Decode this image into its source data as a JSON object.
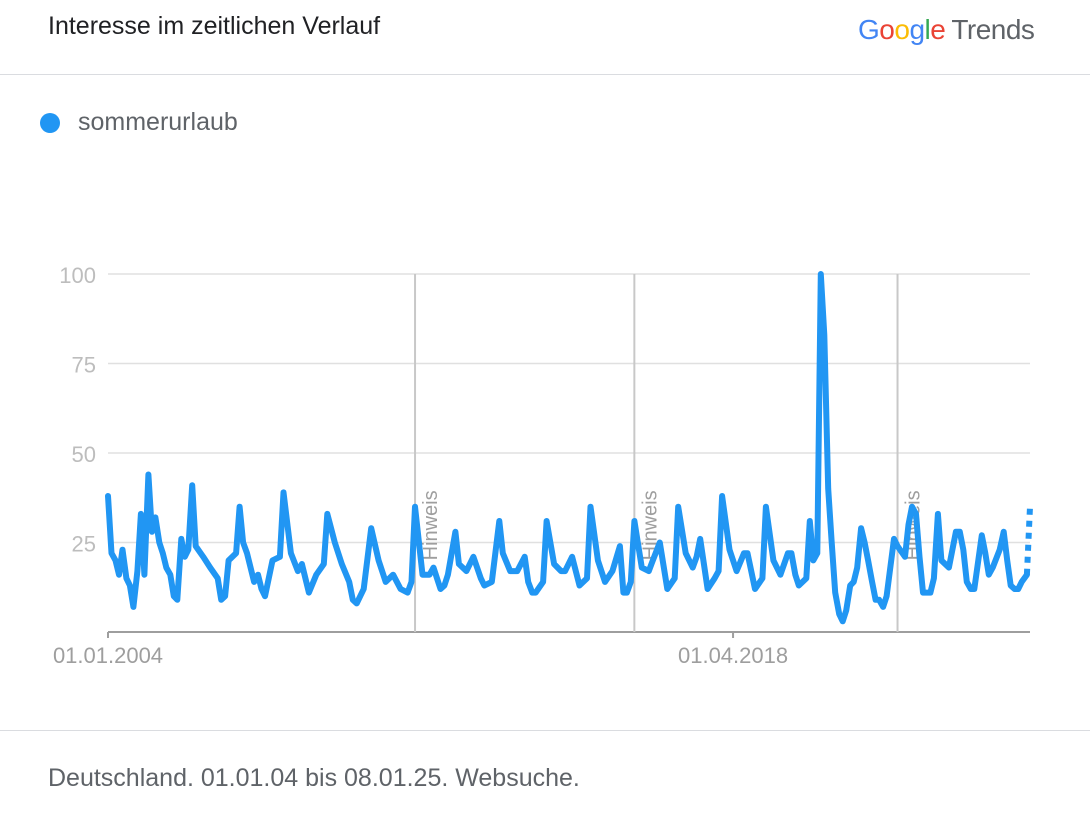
{
  "header": {
    "title": "Interesse im zeitlichen Verlauf",
    "logo_google": [
      "G",
      "o",
      "o",
      "g",
      "l",
      "e"
    ],
    "logo_trends": "Trends"
  },
  "legend": {
    "label": "sommerurlaub",
    "color": "#2196F3"
  },
  "footer": {
    "text": "Deutschland. 01.01.04 bis 08.01.25. Websuche."
  },
  "chart_data": {
    "type": "line",
    "ylim": [
      0,
      100
    ],
    "yticks": [
      "100",
      "75",
      "50",
      "25"
    ],
    "xtick_labels": [
      {
        "label": "01.01.2004",
        "x": 2004.0
      },
      {
        "label": "01.04.2018",
        "x": 2018.25
      }
    ],
    "annotations": [
      {
        "label": "Hinweis",
        "x": 2011.0
      },
      {
        "label": "Hinweis",
        "x": 2016.0
      },
      {
        "label": "Hinweis",
        "x": 2022.0
      }
    ],
    "series": [
      {
        "name": "sommerurlaub",
        "color": "#2196F3",
        "partial_from_x": 2024.95,
        "points": [
          [
            2004.0,
            38
          ],
          [
            2004.08,
            22
          ],
          [
            2004.17,
            20
          ],
          [
            2004.25,
            16
          ],
          [
            2004.33,
            23
          ],
          [
            2004.42,
            15
          ],
          [
            2004.5,
            13
          ],
          [
            2004.58,
            7
          ],
          [
            2004.67,
            17
          ],
          [
            2004.75,
            33
          ],
          [
            2004.83,
            16
          ],
          [
            2004.92,
            44
          ],
          [
            2005.0,
            28
          ],
          [
            2005.08,
            32
          ],
          [
            2005.17,
            25
          ],
          [
            2005.25,
            22
          ],
          [
            2005.33,
            18
          ],
          [
            2005.42,
            16
          ],
          [
            2005.5,
            10
          ],
          [
            2005.58,
            9
          ],
          [
            2005.67,
            26
          ],
          [
            2005.75,
            21
          ],
          [
            2005.83,
            23
          ],
          [
            2005.92,
            41
          ],
          [
            2006.0,
            24
          ],
          [
            2006.17,
            21
          ],
          [
            2006.33,
            18
          ],
          [
            2006.5,
            15
          ],
          [
            2006.58,
            9
          ],
          [
            2006.67,
            10
          ],
          [
            2006.75,
            20
          ],
          [
            2006.92,
            22
          ],
          [
            2007.0,
            35
          ],
          [
            2007.08,
            25
          ],
          [
            2007.17,
            22
          ],
          [
            2007.33,
            14
          ],
          [
            2007.42,
            16
          ],
          [
            2007.5,
            12
          ],
          [
            2007.58,
            10
          ],
          [
            2007.75,
            20
          ],
          [
            2007.92,
            21
          ],
          [
            2008.0,
            39
          ],
          [
            2008.17,
            22
          ],
          [
            2008.33,
            17
          ],
          [
            2008.42,
            19
          ],
          [
            2008.58,
            11
          ],
          [
            2008.75,
            16
          ],
          [
            2008.92,
            19
          ],
          [
            2009.0,
            33
          ],
          [
            2009.17,
            25
          ],
          [
            2009.33,
            19
          ],
          [
            2009.5,
            14
          ],
          [
            2009.58,
            9
          ],
          [
            2009.67,
            8
          ],
          [
            2009.83,
            12
          ],
          [
            2010.0,
            29
          ],
          [
            2010.17,
            20
          ],
          [
            2010.33,
            14
          ],
          [
            2010.5,
            16
          ],
          [
            2010.67,
            12
          ],
          [
            2010.83,
            11
          ],
          [
            2010.92,
            14
          ],
          [
            2011.0,
            35
          ],
          [
            2011.17,
            16
          ],
          [
            2011.33,
            16
          ],
          [
            2011.42,
            18
          ],
          [
            2011.5,
            15
          ],
          [
            2011.58,
            12
          ],
          [
            2011.67,
            13
          ],
          [
            2011.75,
            16
          ],
          [
            2011.92,
            28
          ],
          [
            2012.0,
            19
          ],
          [
            2012.17,
            17
          ],
          [
            2012.33,
            21
          ],
          [
            2012.5,
            15
          ],
          [
            2012.58,
            13
          ],
          [
            2012.75,
            14
          ],
          [
            2012.92,
            31
          ],
          [
            2013.0,
            22
          ],
          [
            2013.17,
            17
          ],
          [
            2013.33,
            17
          ],
          [
            2013.5,
            21
          ],
          [
            2013.58,
            14
          ],
          [
            2013.67,
            11
          ],
          [
            2013.75,
            11
          ],
          [
            2013.92,
            14
          ],
          [
            2014.0,
            31
          ],
          [
            2014.17,
            19
          ],
          [
            2014.33,
            17
          ],
          [
            2014.42,
            17
          ],
          [
            2014.58,
            21
          ],
          [
            2014.75,
            13
          ],
          [
            2014.92,
            15
          ],
          [
            2015.0,
            35
          ],
          [
            2015.17,
            20
          ],
          [
            2015.33,
            14
          ],
          [
            2015.5,
            17
          ],
          [
            2015.67,
            24
          ],
          [
            2015.75,
            11
          ],
          [
            2015.83,
            11
          ],
          [
            2015.92,
            14
          ],
          [
            2016.0,
            31
          ],
          [
            2016.17,
            18
          ],
          [
            2016.33,
            17
          ],
          [
            2016.42,
            20
          ],
          [
            2016.58,
            25
          ],
          [
            2016.75,
            12
          ],
          [
            2016.92,
            15
          ],
          [
            2017.0,
            35
          ],
          [
            2017.17,
            22
          ],
          [
            2017.33,
            18
          ],
          [
            2017.42,
            21
          ],
          [
            2017.5,
            26
          ],
          [
            2017.67,
            12
          ],
          [
            2017.83,
            15
          ],
          [
            2017.92,
            17
          ],
          [
            2018.0,
            38
          ],
          [
            2018.17,
            23
          ],
          [
            2018.33,
            17
          ],
          [
            2018.5,
            22
          ],
          [
            2018.58,
            22
          ],
          [
            2018.75,
            12
          ],
          [
            2018.92,
            15
          ],
          [
            2019.0,
            35
          ],
          [
            2019.17,
            20
          ],
          [
            2019.33,
            16
          ],
          [
            2019.5,
            22
          ],
          [
            2019.58,
            22
          ],
          [
            2019.67,
            16
          ],
          [
            2019.75,
            13
          ],
          [
            2019.92,
            15
          ],
          [
            2020.0,
            31
          ],
          [
            2020.08,
            20
          ],
          [
            2020.17,
            22
          ],
          [
            2020.25,
            100
          ],
          [
            2020.33,
            83
          ],
          [
            2020.42,
            40
          ],
          [
            2020.5,
            25
          ],
          [
            2020.58,
            11
          ],
          [
            2020.67,
            5
          ],
          [
            2020.75,
            3
          ],
          [
            2020.83,
            6
          ],
          [
            2020.92,
            13
          ],
          [
            2021.0,
            14
          ],
          [
            2021.08,
            18
          ],
          [
            2021.17,
            29
          ],
          [
            2021.25,
            25
          ],
          [
            2021.33,
            20
          ],
          [
            2021.42,
            14
          ],
          [
            2021.5,
            9
          ],
          [
            2021.58,
            9
          ],
          [
            2021.67,
            7
          ],
          [
            2021.75,
            10
          ],
          [
            2021.92,
            26
          ],
          [
            2022.0,
            24
          ],
          [
            2022.17,
            21
          ],
          [
            2022.25,
            30
          ],
          [
            2022.33,
            35
          ],
          [
            2022.42,
            33
          ],
          [
            2022.5,
            21
          ],
          [
            2022.58,
            11
          ],
          [
            2022.75,
            11
          ],
          [
            2022.83,
            15
          ],
          [
            2022.92,
            33
          ],
          [
            2023.0,
            20
          ],
          [
            2023.17,
            18
          ],
          [
            2023.33,
            28
          ],
          [
            2023.42,
            28
          ],
          [
            2023.5,
            23
          ],
          [
            2023.58,
            14
          ],
          [
            2023.67,
            12
          ],
          [
            2023.75,
            12
          ],
          [
            2023.92,
            27
          ],
          [
            2024.0,
            22
          ],
          [
            2024.08,
            16
          ],
          [
            2024.17,
            18
          ],
          [
            2024.33,
            23
          ],
          [
            2024.42,
            28
          ],
          [
            2024.5,
            20
          ],
          [
            2024.58,
            13
          ],
          [
            2024.67,
            12
          ],
          [
            2024.75,
            12
          ],
          [
            2024.83,
            14
          ],
          [
            2024.95,
            16
          ],
          [
            2025.02,
            35
          ]
        ]
      }
    ]
  }
}
